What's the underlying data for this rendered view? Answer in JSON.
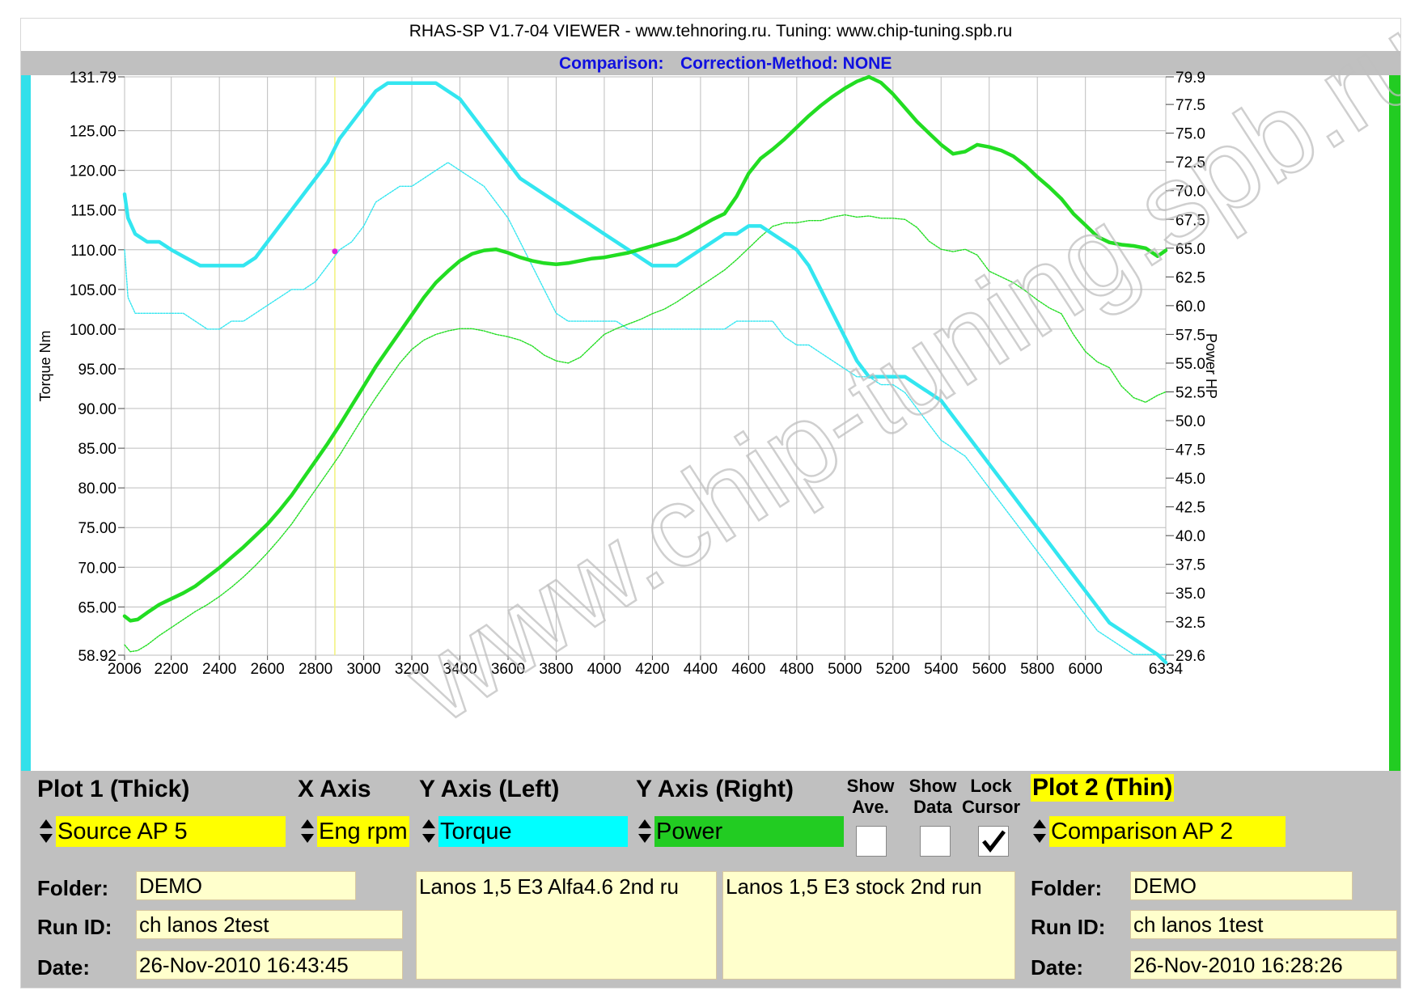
{
  "window": {
    "title": "RHAS-SP V1.7-04  VIEWER - www.tehnoring.ru. Tuning: www.chip-tuning.spb.ru",
    "comparison_label": "Comparison:",
    "correction_label": "Correction-Method: NONE"
  },
  "watermark": "www.chip-tuning.spb.ru",
  "chart_data": {
    "type": "line",
    "ylabel": "Torque Nm",
    "y2label": "Power HP",
    "xlim": [
      2006,
      6334
    ],
    "ylim": [
      58.92,
      131.79
    ],
    "y2lim": [
      29.6,
      79.9
    ],
    "x_tick_labels": [
      "2006",
      "2200",
      "2400",
      "2600",
      "2800",
      "3000",
      "3200",
      "3400",
      "3600",
      "3800",
      "4000",
      "4200",
      "4400",
      "4600",
      "4800",
      "5000",
      "5200",
      "5400",
      "5600",
      "5800",
      "6000",
      "6334"
    ],
    "y_tick_labels": [
      "131.79",
      "125.00",
      "120.00",
      "115.00",
      "110.00",
      "105.00",
      "100.00",
      "95.00",
      "90.00",
      "85.00",
      "80.00",
      "75.00",
      "70.00",
      "65.00",
      "58.92"
    ],
    "y2_tick_labels": [
      "79.9",
      "77.5",
      "75.0",
      "72.5",
      "70.0",
      "67.5",
      "65.0",
      "62.5",
      "60.0",
      "57.5",
      "55.0",
      "52.5",
      "50.0",
      "47.5",
      "45.0",
      "42.5",
      "40.0",
      "37.5",
      "35.0",
      "32.5",
      "29.6"
    ],
    "cursor_rpm": 2880,
    "cursor_torque": 109.8,
    "colors": {
      "torque": "#33e6f0",
      "power": "#22dd22"
    },
    "series": [
      {
        "name": "Source AP 5 Torque",
        "axis": "left",
        "style": "thick",
        "x": [
          2006,
          2020,
          2050,
          2100,
          2150,
          2200,
          2260,
          2320,
          2380,
          2450,
          2500,
          2550,
          2600,
          2650,
          2700,
          2750,
          2800,
          2850,
          2900,
          2950,
          3000,
          3050,
          3100,
          3150,
          3200,
          3250,
          3300,
          3350,
          3400,
          3450,
          3500,
          3550,
          3600,
          3650,
          3700,
          3750,
          3800,
          3850,
          3900,
          3950,
          4000,
          4050,
          4100,
          4150,
          4200,
          4250,
          4300,
          4350,
          4400,
          4450,
          4500,
          4550,
          4600,
          4650,
          4700,
          4750,
          4800,
          4850,
          4900,
          4950,
          5000,
          5050,
          5100,
          5150,
          5200,
          5250,
          5300,
          5350,
          5400,
          5450,
          5500,
          5550,
          5600,
          5650,
          5700,
          5750,
          5800,
          5850,
          5900,
          5950,
          6000,
          6050,
          6100,
          6150,
          6200,
          6250,
          6300,
          6334
        ],
        "values": [
          117,
          114,
          112,
          111,
          111,
          110,
          109,
          108,
          108,
          108,
          108,
          109,
          111,
          113,
          115,
          117,
          119,
          121,
          124,
          126,
          128,
          130,
          131,
          131,
          131,
          131,
          131,
          130,
          129,
          127,
          125,
          123,
          121,
          119,
          118,
          117,
          116,
          115,
          114,
          113,
          112,
          111,
          110,
          109,
          108,
          108,
          108,
          109,
          110,
          111,
          112,
          112,
          113,
          113,
          112,
          111,
          110,
          108,
          105,
          102,
          99,
          96,
          94,
          94,
          94,
          94,
          93,
          92,
          91,
          89,
          87,
          85,
          83,
          81,
          79,
          77,
          75,
          73,
          71,
          69,
          67,
          65,
          63,
          62,
          61,
          60,
          59,
          58
        ]
      },
      {
        "name": "Source AP 5 Power",
        "axis": "right",
        "style": "thick",
        "x": [
          2006,
          2030,
          2060,
          2100,
          2150,
          2200,
          2250,
          2300,
          2350,
          2400,
          2450,
          2500,
          2550,
          2600,
          2650,
          2700,
          2750,
          2800,
          2850,
          2900,
          2950,
          3000,
          3050,
          3100,
          3150,
          3200,
          3250,
          3300,
          3350,
          3400,
          3450,
          3500,
          3550,
          3600,
          3650,
          3700,
          3750,
          3800,
          3850,
          3900,
          3950,
          4000,
          4050,
          4100,
          4150,
          4200,
          4250,
          4300,
          4350,
          4400,
          4450,
          4500,
          4550,
          4600,
          4650,
          4700,
          4750,
          4800,
          4850,
          4900,
          4950,
          5000,
          5050,
          5100,
          5150,
          5200,
          5250,
          5300,
          5350,
          5400,
          5450,
          5500,
          5550,
          5600,
          5650,
          5700,
          5750,
          5800,
          5850,
          5900,
          5950,
          6000,
          6050,
          6100,
          6150,
          6200,
          6250,
          6300,
          6334
        ],
        "values": [
          33.0,
          32.6,
          32.7,
          33.3,
          34.0,
          34.5,
          35.0,
          35.6,
          36.4,
          37.2,
          38.1,
          39.0,
          40.0,
          41.0,
          42.2,
          43.5,
          45.0,
          46.5,
          48.0,
          49.6,
          51.3,
          53.0,
          54.7,
          56.2,
          57.7,
          59.2,
          60.7,
          62.0,
          63.0,
          63.9,
          64.5,
          64.8,
          64.9,
          64.6,
          64.2,
          63.9,
          63.7,
          63.6,
          63.7,
          63.9,
          64.1,
          64.2,
          64.4,
          64.6,
          64.9,
          65.2,
          65.5,
          65.8,
          66.3,
          66.9,
          67.5,
          68.0,
          69.5,
          71.5,
          72.8,
          73.6,
          74.5,
          75.5,
          76.5,
          77.4,
          78.2,
          78.9,
          79.5,
          79.9,
          79.4,
          78.4,
          77.2,
          76.0,
          75.0,
          74.0,
          73.2,
          73.4,
          74.0,
          73.8,
          73.5,
          73.0,
          72.2,
          71.2,
          70.3,
          69.3,
          68.0,
          67.0,
          66.0,
          65.5,
          65.3,
          65.2,
          65.0,
          64.3,
          64.8
        ]
      },
      {
        "name": "Comparison AP 2 Torque",
        "axis": "left",
        "style": "thin",
        "x": [
          2006,
          2020,
          2050,
          2100,
          2150,
          2200,
          2250,
          2300,
          2350,
          2400,
          2450,
          2500,
          2550,
          2600,
          2650,
          2700,
          2750,
          2800,
          2850,
          2900,
          2950,
          3000,
          3050,
          3100,
          3150,
          3200,
          3250,
          3300,
          3350,
          3400,
          3450,
          3500,
          3550,
          3600,
          3650,
          3700,
          3750,
          3800,
          3850,
          3900,
          3950,
          4000,
          4050,
          4100,
          4150,
          4200,
          4250,
          4300,
          4350,
          4400,
          4450,
          4500,
          4550,
          4600,
          4650,
          4700,
          4750,
          4800,
          4850,
          4900,
          4950,
          5000,
          5050,
          5100,
          5150,
          5200,
          5250,
          5300,
          5350,
          5400,
          5450,
          5500,
          5550,
          5600,
          5650,
          5700,
          5750,
          5800,
          5850,
          5900,
          5950,
          6000,
          6050,
          6100,
          6150,
          6200,
          6250,
          6300,
          6334
        ],
        "values": [
          110,
          104,
          102,
          102,
          102,
          102,
          102,
          101,
          100,
          100,
          101,
          101,
          102,
          103,
          104,
          105,
          105,
          106,
          108,
          110,
          111,
          113,
          116,
          117,
          118,
          118,
          119,
          120,
          121,
          120,
          119,
          118,
          116,
          114,
          111,
          108,
          105,
          102,
          101,
          101,
          101,
          101,
          101,
          100,
          100,
          100,
          100,
          100,
          100,
          100,
          100,
          100,
          101,
          101,
          101,
          101,
          99,
          98,
          98,
          97,
          96,
          95,
          94,
          94,
          93,
          93,
          92,
          90,
          88,
          86,
          85,
          84,
          82,
          80,
          78,
          76,
          74,
          72,
          70,
          68,
          66,
          64,
          62,
          61,
          60,
          59,
          59,
          59,
          59
        ]
      },
      {
        "name": "Comparison AP 2 Power",
        "axis": "right",
        "style": "thin",
        "x": [
          2006,
          2030,
          2060,
          2100,
          2150,
          2200,
          2250,
          2300,
          2350,
          2400,
          2450,
          2500,
          2550,
          2600,
          2650,
          2700,
          2750,
          2800,
          2850,
          2900,
          2950,
          3000,
          3050,
          3100,
          3150,
          3200,
          3250,
          3300,
          3350,
          3400,
          3450,
          3500,
          3550,
          3600,
          3650,
          3700,
          3750,
          3800,
          3850,
          3900,
          3950,
          4000,
          4050,
          4100,
          4150,
          4200,
          4250,
          4300,
          4350,
          4400,
          4450,
          4500,
          4550,
          4600,
          4650,
          4700,
          4750,
          4800,
          4850,
          4900,
          4950,
          5000,
          5050,
          5100,
          5150,
          5200,
          5250,
          5300,
          5350,
          5400,
          5450,
          5500,
          5550,
          5600,
          5650,
          5700,
          5750,
          5800,
          5850,
          5900,
          5950,
          6000,
          6050,
          6100,
          6150,
          6200,
          6250,
          6300,
          6334
        ],
        "values": [
          30.5,
          29.9,
          30.0,
          30.5,
          31.3,
          32.0,
          32.7,
          33.4,
          34.0,
          34.7,
          35.5,
          36.4,
          37.4,
          38.5,
          39.7,
          41.0,
          42.5,
          44.0,
          45.5,
          47.0,
          48.7,
          50.4,
          52.0,
          53.5,
          55.0,
          56.2,
          57.0,
          57.5,
          57.8,
          58.0,
          58.0,
          57.8,
          57.5,
          57.3,
          57.0,
          56.5,
          55.7,
          55.2,
          55.0,
          55.5,
          56.5,
          57.5,
          58.0,
          58.4,
          58.8,
          59.3,
          59.7,
          60.3,
          61.0,
          61.7,
          62.4,
          63.1,
          64.0,
          65.0,
          66.0,
          66.9,
          67.2,
          67.2,
          67.4,
          67.4,
          67.7,
          67.9,
          67.7,
          67.8,
          67.6,
          67.6,
          67.5,
          66.8,
          65.6,
          64.9,
          64.7,
          64.9,
          64.4,
          63.0,
          62.5,
          62.0,
          61.3,
          60.5,
          59.8,
          59.3,
          57.5,
          56.0,
          55.1,
          54.6,
          53.0,
          52.0,
          51.6,
          52.2,
          52.5
        ]
      }
    ]
  },
  "panel": {
    "plot1_header": "Plot 1 (Thick)",
    "xaxis_header": "X Axis",
    "yleft_header": "Y Axis (Left)",
    "yright_header": "Y Axis (Right)",
    "show_ave_header": "Show Ave.",
    "show_data_header": "Show Data",
    "lock_cursor_header": "Lock Cursor",
    "plot2_header": "Plot 2 (Thin)",
    "plot1_source": "Source AP 5",
    "xaxis_value": "Eng rpm",
    "yleft_value": "Torque",
    "yright_value": "Power",
    "plot2_source": "Comparison AP 2",
    "show_ave_checked": false,
    "show_data_checked": false,
    "lock_cursor_checked": true,
    "folder_label": "Folder:",
    "runid_label": "Run ID:",
    "date_label": "Date:",
    "plot1_folder": "DEMO",
    "plot1_runid": "ch lanos 2test",
    "plot1_date": "26-Nov-2010  16:43:45",
    "plot1_notes": "Lanos 1,5 E3 Alfa4.6 2nd ru",
    "plot2_notes": "Lanos 1,5 E3 stock 2nd run",
    "plot2_folder": "DEMO",
    "plot2_runid": "ch lanos 1test",
    "plot2_date": "26-Nov-2010  16:28:26"
  }
}
